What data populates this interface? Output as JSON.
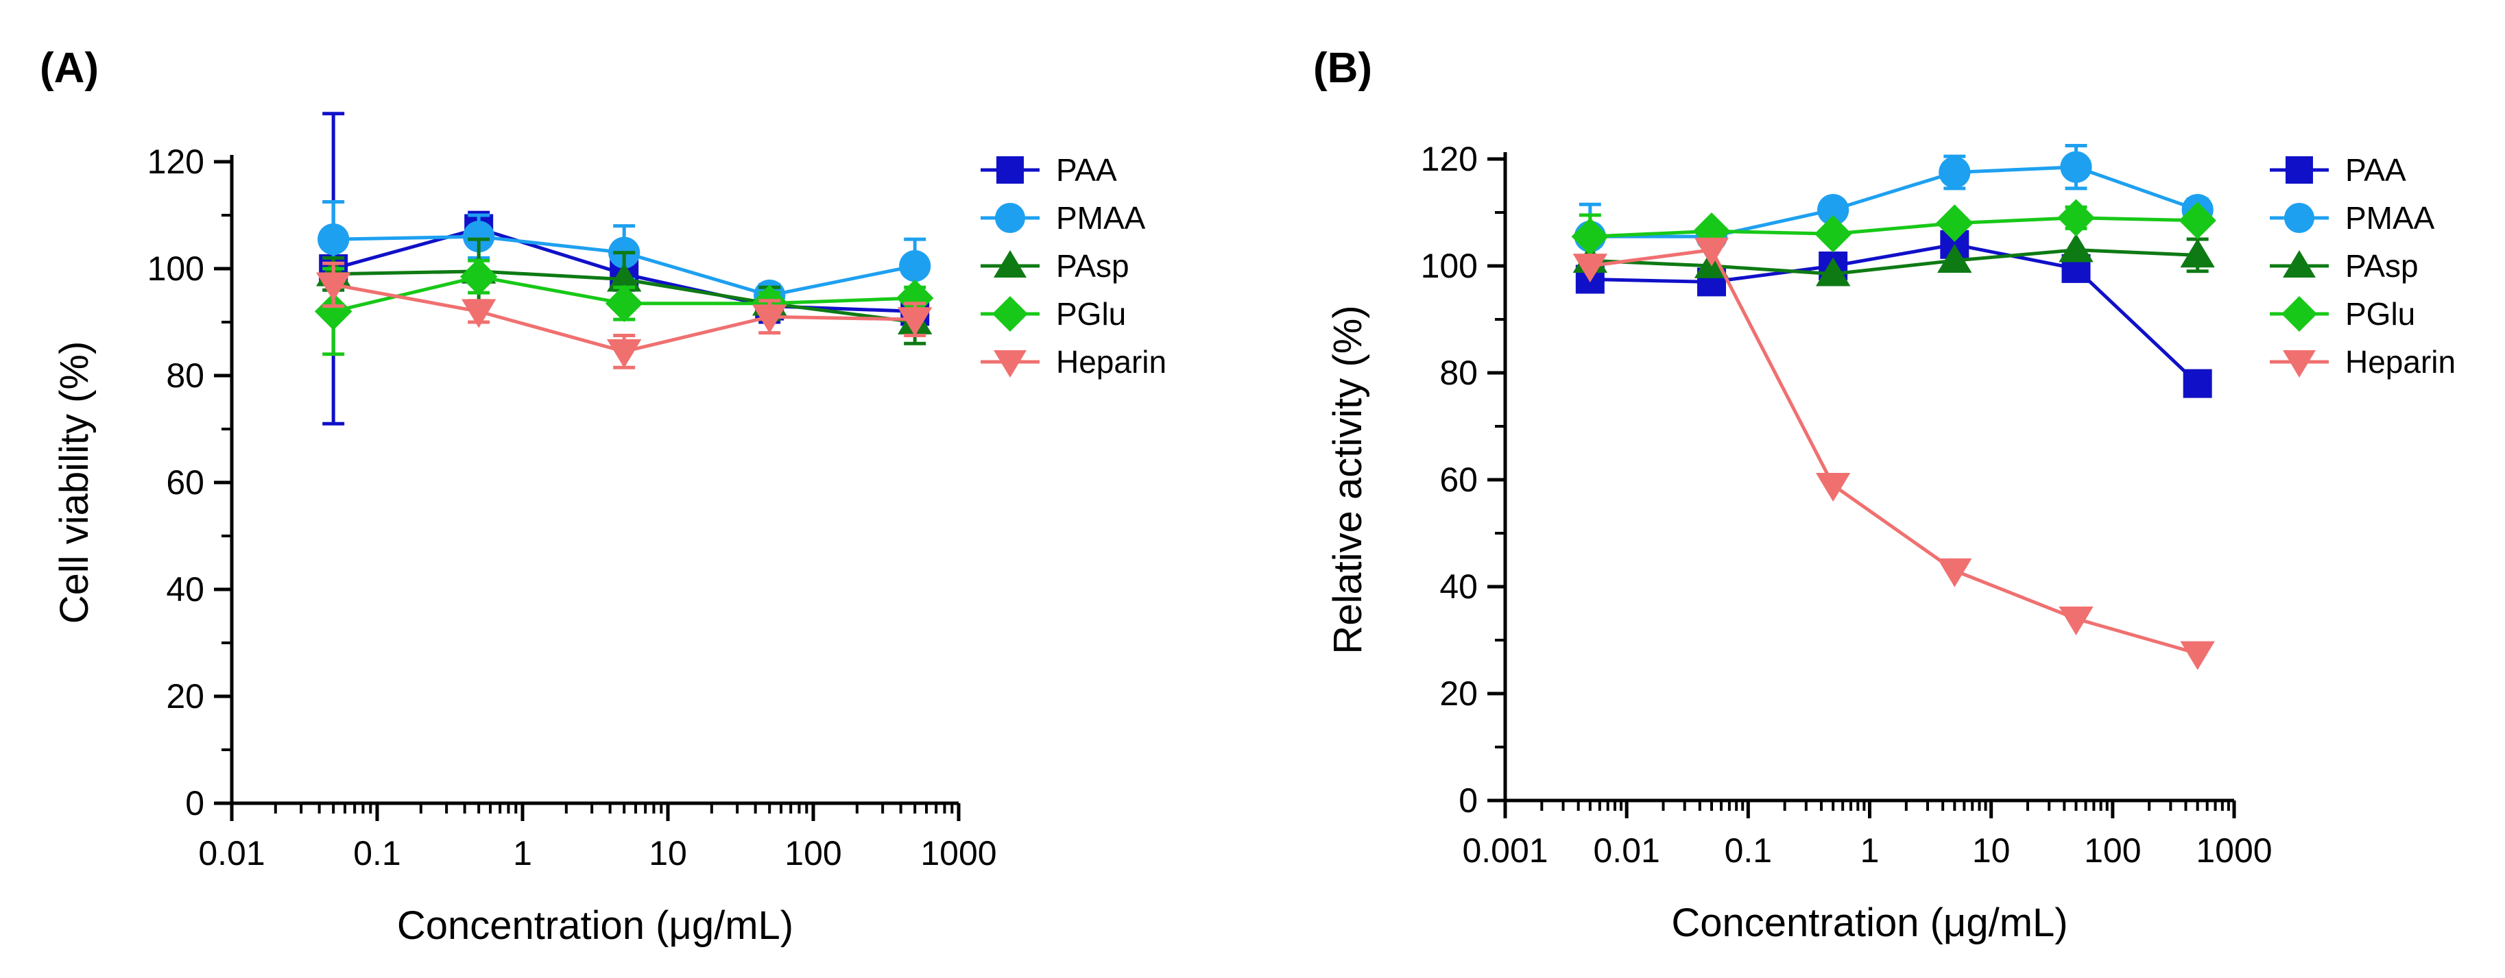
{
  "chart_data": [
    {
      "type": "line",
      "panel_label": "(A)",
      "title": "",
      "xlabel": "Concentration (μg/mL)",
      "ylabel": "Cell viability (%)",
      "xscale": "log",
      "xlim": [
        0.01,
        1000
      ],
      "ylim": [
        0,
        120
      ],
      "xticks": [
        0.01,
        0.1,
        1,
        10,
        100,
        1000
      ],
      "xtick_labels": [
        "0.01",
        "0.1",
        "1",
        "10",
        "100",
        "1000"
      ],
      "yticks": [
        0,
        20,
        40,
        60,
        80,
        100,
        120
      ],
      "ytick_labels": [
        "0",
        "20",
        "40",
        "60",
        "80",
        "100",
        "120"
      ],
      "legend_position": "top-right",
      "x": [
        0.05,
        0.5,
        5,
        50,
        500
      ],
      "series": [
        {
          "name": "PAA",
          "marker": "square",
          "color": "#1010C8",
          "values": [
            100,
            107.5,
            99,
            93,
            92
          ],
          "errors": [
            29,
            3,
            3,
            3,
            2
          ]
        },
        {
          "name": "PMAA",
          "marker": "circle",
          "color": "#1EA0F0",
          "values": [
            105.5,
            106,
            103,
            95,
            100.5
          ],
          "errors": [
            7,
            4,
            5,
            2,
            5
          ]
        },
        {
          "name": "PAsp",
          "marker": "triangle-up",
          "color": "#0E7A14",
          "values": [
            99,
            99.5,
            98,
            93.5,
            90
          ],
          "errors": [
            3,
            6,
            5,
            3,
            4
          ]
        },
        {
          "name": "PGlu",
          "marker": "diamond",
          "color": "#18C818",
          "values": [
            92,
            98.5,
            93.5,
            93.5,
            94.5
          ],
          "errors": [
            8,
            3,
            3,
            2,
            2
          ]
        },
        {
          "name": "Heparin",
          "marker": "triangle-down",
          "color": "#F07070",
          "values": [
            97,
            92,
            84.5,
            91,
            90.5
          ],
          "errors": [
            4,
            2,
            3,
            3,
            3
          ]
        }
      ]
    },
    {
      "type": "line",
      "panel_label": "(B)",
      "title": "",
      "xlabel": "Concentration (μg/mL)",
      "ylabel": "Relative activity (%)",
      "xscale": "log",
      "xlim": [
        0.001,
        1000
      ],
      "ylim": [
        0,
        120
      ],
      "xticks": [
        0.001,
        0.01,
        0.1,
        1,
        10,
        100,
        1000
      ],
      "xtick_labels": [
        "0.001",
        "0.01",
        "0.1",
        "1",
        "10",
        "100",
        "1000"
      ],
      "yticks": [
        0,
        20,
        40,
        60,
        80,
        100,
        120
      ],
      "ytick_labels": [
        "0",
        "20",
        "40",
        "60",
        "80",
        "100",
        "120"
      ],
      "legend_position": "top-right",
      "x": [
        0.005,
        0.05,
        0.5,
        5,
        50,
        500
      ],
      "series": [
        {
          "name": "PAA",
          "marker": "square",
          "color": "#1010C8",
          "values": [
            97.5,
            97,
            100,
            104,
            99.5,
            78
          ],
          "errors": [
            1,
            1,
            1,
            1,
            1,
            1
          ]
        },
        {
          "name": "PMAA",
          "marker": "circle",
          "color": "#1EA0F0",
          "values": [
            105.5,
            105.5,
            110.5,
            117.5,
            118.5,
            110.5
          ],
          "errors": [
            6,
            1,
            1,
            3,
            4,
            2
          ]
        },
        {
          "name": "PAsp",
          "marker": "triangle-up",
          "color": "#0E7A14",
          "values": [
            101,
            100,
            98.5,
            101,
            103,
            102
          ],
          "errors": [
            1,
            1,
            1,
            1,
            1,
            3
          ]
        },
        {
          "name": "PGlu",
          "marker": "diamond",
          "color": "#18C818",
          "values": [
            105.5,
            106.5,
            106,
            108,
            109,
            108.5
          ],
          "errors": [
            4,
            1,
            1,
            1,
            2,
            1
          ]
        },
        {
          "name": "Heparin",
          "marker": "triangle-down",
          "color": "#F07070",
          "values": [
            100,
            103,
            59,
            43,
            34,
            27.5
          ],
          "errors": [
            1,
            1,
            1,
            1,
            1,
            1
          ]
        }
      ]
    }
  ]
}
